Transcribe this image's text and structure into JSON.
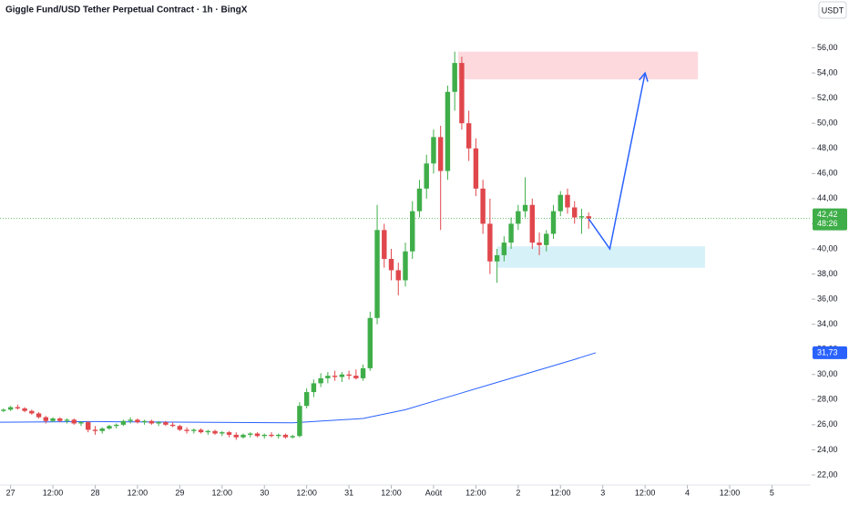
{
  "chart_data": {
    "type": "candlestick",
    "title": "Giggle Fund/USD Tether Perpetual Contract · 1h · BingX",
    "currency": "USDT",
    "up_color": "#3fae49",
    "down_color": "#e0474c",
    "grid": false,
    "xlim": [
      -3,
      227
    ],
    "ylim": [
      21.2,
      57.2
    ],
    "xticks": [
      {
        "value": 0,
        "label": "27"
      },
      {
        "value": 12,
        "label": "12:00"
      },
      {
        "value": 24,
        "label": "28"
      },
      {
        "value": 36,
        "label": "12:00"
      },
      {
        "value": 48,
        "label": "29"
      },
      {
        "value": 60,
        "label": "12:00"
      },
      {
        "value": 72,
        "label": "30"
      },
      {
        "value": 84,
        "label": "12:00"
      },
      {
        "value": 96,
        "label": "31"
      },
      {
        "value": 108,
        "label": "12:00"
      },
      {
        "value": 120,
        "label": "Août"
      },
      {
        "value": 132,
        "label": "12:00"
      },
      {
        "value": 144,
        "label": "2"
      },
      {
        "value": 156,
        "label": "12:00"
      },
      {
        "value": 168,
        "label": "3"
      },
      {
        "value": 180,
        "label": "12:00"
      },
      {
        "value": 192,
        "label": "4"
      },
      {
        "value": 204,
        "label": "12:00"
      },
      {
        "value": 216,
        "label": "5"
      }
    ],
    "yticks": [
      {
        "value": 22,
        "label": "22,00"
      },
      {
        "value": 24,
        "label": "24,00"
      },
      {
        "value": 26,
        "label": "26,00"
      },
      {
        "value": 28,
        "label": "28,00"
      },
      {
        "value": 30,
        "label": "30,00"
      },
      {
        "value": 32,
        "label": "32,00"
      },
      {
        "value": 34,
        "label": "34,00"
      },
      {
        "value": 36,
        "label": "36,00"
      },
      {
        "value": 38,
        "label": "38,00"
      },
      {
        "value": 40,
        "label": "40,00"
      },
      {
        "value": 42,
        "label": "42,00"
      },
      {
        "value": 44,
        "label": "44,00"
      },
      {
        "value": 46,
        "label": "46,00"
      },
      {
        "value": 48,
        "label": "48,00"
      },
      {
        "value": 50,
        "label": "50,00"
      },
      {
        "value": 52,
        "label": "52,00"
      },
      {
        "value": 54,
        "label": "54,00"
      },
      {
        "value": 56,
        "label": "56,00"
      }
    ],
    "candles": {
      "x": [
        -2,
        0,
        2,
        4,
        6,
        8,
        10,
        12,
        14,
        16,
        18,
        20,
        22,
        24,
        26,
        28,
        30,
        32,
        34,
        36,
        38,
        40,
        42,
        44,
        46,
        48,
        50,
        52,
        54,
        56,
        58,
        60,
        62,
        64,
        66,
        68,
        70,
        72,
        74,
        76,
        78,
        80,
        82,
        84,
        86,
        88,
        90,
        92,
        94,
        96,
        98,
        100,
        102,
        104,
        106,
        108,
        110,
        112,
        114,
        116,
        118,
        120,
        122,
        124,
        126,
        128,
        130,
        132,
        134,
        136,
        138,
        140,
        142,
        144,
        146,
        148,
        150,
        152,
        154,
        156,
        158,
        160,
        162,
        164
      ],
      "ohlc": [
        [
          27.1,
          27.3,
          27.0,
          27.2
        ],
        [
          27.2,
          27.5,
          27.1,
          27.4
        ],
        [
          27.4,
          27.6,
          27.2,
          27.3
        ],
        [
          27.3,
          27.4,
          27.0,
          27.1
        ],
        [
          27.1,
          27.2,
          26.8,
          26.9
        ],
        [
          26.9,
          27.0,
          26.5,
          26.6
        ],
        [
          26.6,
          26.7,
          26.1,
          26.3
        ],
        [
          26.3,
          26.6,
          26.2,
          26.5
        ],
        [
          26.5,
          26.6,
          26.2,
          26.3
        ],
        [
          26.3,
          26.5,
          26.1,
          26.4
        ],
        [
          26.4,
          26.5,
          26.0,
          26.1
        ],
        [
          26.1,
          26.3,
          25.9,
          26.2
        ],
        [
          26.2,
          26.3,
          25.4,
          25.6
        ],
        [
          25.6,
          25.9,
          25.2,
          25.5
        ],
        [
          25.5,
          25.8,
          25.3,
          25.7
        ],
        [
          25.7,
          26.0,
          25.6,
          25.9
        ],
        [
          25.9,
          26.1,
          25.7,
          26.0
        ],
        [
          26.0,
          26.4,
          25.9,
          26.3
        ],
        [
          26.3,
          26.6,
          26.1,
          26.4
        ],
        [
          26.4,
          26.5,
          26.1,
          26.2
        ],
        [
          26.2,
          26.4,
          26.0,
          26.3
        ],
        [
          26.3,
          26.4,
          26.0,
          26.1
        ],
        [
          26.1,
          26.3,
          25.9,
          26.2
        ],
        [
          26.2,
          26.3,
          25.9,
          26.0
        ],
        [
          26.0,
          26.2,
          25.8,
          25.9
        ],
        [
          25.9,
          26.0,
          25.5,
          25.6
        ],
        [
          25.6,
          25.8,
          25.3,
          25.5
        ],
        [
          25.5,
          25.7,
          25.3,
          25.6
        ],
        [
          25.6,
          25.7,
          25.3,
          25.4
        ],
        [
          25.4,
          25.6,
          25.2,
          25.5
        ],
        [
          25.5,
          25.6,
          25.2,
          25.3
        ],
        [
          25.3,
          25.5,
          25.1,
          25.4
        ],
        [
          25.4,
          25.5,
          25.0,
          25.2
        ],
        [
          25.2,
          25.4,
          24.8,
          25.0
        ],
        [
          25.0,
          25.3,
          24.9,
          25.2
        ],
        [
          25.2,
          25.4,
          25.0,
          25.3
        ],
        [
          25.3,
          25.4,
          25.0,
          25.1
        ],
        [
          25.1,
          25.3,
          24.9,
          25.2
        ],
        [
          25.2,
          25.4,
          25.0,
          25.1
        ],
        [
          25.1,
          25.3,
          24.9,
          25.2
        ],
        [
          25.2,
          25.3,
          24.9,
          25.0
        ],
        [
          25.0,
          25.2,
          24.9,
          25.1
        ],
        [
          25.1,
          27.8,
          25.0,
          27.5
        ],
        [
          27.5,
          28.9,
          27.3,
          28.6
        ],
        [
          28.6,
          29.6,
          28.2,
          29.3
        ],
        [
          29.3,
          30.1,
          29.0,
          29.7
        ],
        [
          29.7,
          30.2,
          29.3,
          29.9
        ],
        [
          29.9,
          30.3,
          29.5,
          29.8
        ],
        [
          29.8,
          30.2,
          29.4,
          30.0
        ],
        [
          30.0,
          30.3,
          29.6,
          29.9
        ],
        [
          29.9,
          30.4,
          29.6,
          29.7
        ],
        [
          29.7,
          30.8,
          29.5,
          30.5
        ],
        [
          30.5,
          35.0,
          30.3,
          34.5
        ],
        [
          34.5,
          43.5,
          34.0,
          41.5
        ],
        [
          41.5,
          42.0,
          38.5,
          39.2
        ],
        [
          39.2,
          40.0,
          37.5,
          38.3
        ],
        [
          38.3,
          38.9,
          36.3,
          37.5
        ],
        [
          37.5,
          40.5,
          37.0,
          39.8
        ],
        [
          39.8,
          43.8,
          39.2,
          43.0
        ],
        [
          43.0,
          45.5,
          42.5,
          44.8
        ],
        [
          44.8,
          47.5,
          44.0,
          46.8
        ],
        [
          46.8,
          49.5,
          46.0,
          48.9
        ],
        [
          48.9,
          49.8,
          41.5,
          46.2
        ],
        [
          46.2,
          53.0,
          45.5,
          52.5
        ],
        [
          52.5,
          55.7,
          51.0,
          54.8
        ],
        [
          54.8,
          55.3,
          49.5,
          50.0
        ],
        [
          50.0,
          51.0,
          47.0,
          48.0
        ],
        [
          48.0,
          48.8,
          44.2,
          44.8
        ],
        [
          44.8,
          45.5,
          41.2,
          42.0
        ],
        [
          42.0,
          44.0,
          38.0,
          39.0
        ],
        [
          39.0,
          40.0,
          37.3,
          39.5
        ],
        [
          39.5,
          41.0,
          39.0,
          40.5
        ],
        [
          40.5,
          42.5,
          40.0,
          42.0
        ],
        [
          42.0,
          43.5,
          41.5,
          43.0
        ],
        [
          43.0,
          45.7,
          42.5,
          43.5
        ],
        [
          43.5,
          44.0,
          40.0,
          40.5
        ],
        [
          40.5,
          41.3,
          39.5,
          40.3
        ],
        [
          40.3,
          41.5,
          39.8,
          41.2
        ],
        [
          41.2,
          43.5,
          40.8,
          43.0
        ],
        [
          43.0,
          44.6,
          42.6,
          44.3
        ],
        [
          44.3,
          44.8,
          42.8,
          43.3
        ],
        [
          43.3,
          43.8,
          42.0,
          42.5
        ],
        [
          42.5,
          43.2,
          41.2,
          42.6
        ],
        [
          42.6,
          42.9,
          41.6,
          42.42
        ]
      ]
    },
    "moving_average": {
      "color": "#2962ff",
      "x": [
        -3,
        24,
        80,
        100,
        112,
        124,
        136,
        148,
        160,
        166
      ],
      "values": [
        26.2,
        26.25,
        26.15,
        26.5,
        27.2,
        28.2,
        29.2,
        30.2,
        31.2,
        31.73
      ],
      "last_label": {
        "value": 31.73,
        "label": "31,73"
      }
    },
    "last_price": {
      "value": 42.42,
      "label": "42,42",
      "countdown": "48:26"
    },
    "zones": [
      {
        "x": [
          127,
          195
        ],
        "y": [
          53.5,
          55.7
        ],
        "color": "#fdd9dd"
      },
      {
        "x": [
          138,
          197
        ],
        "y": [
          38.5,
          40.2
        ],
        "color": "#d6f1f8"
      }
    ],
    "projection": {
      "color": "#2962ff",
      "x": [
        164,
        170,
        180
      ],
      "values": [
        42.4,
        40,
        54
      ]
    }
  }
}
